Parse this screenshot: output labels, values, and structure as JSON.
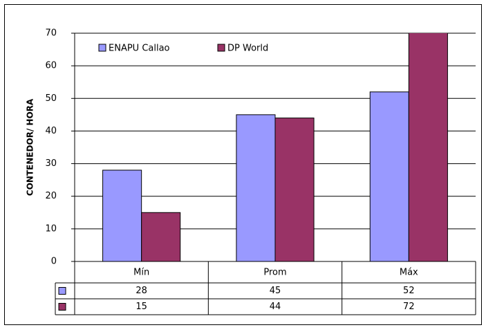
{
  "chart_data": {
    "type": "bar",
    "y_label": "CONTENEDOR/ HORA",
    "categories": [
      "Mín",
      "Prom",
      "Máx"
    ],
    "series": [
      {
        "name": "ENAPU Callao",
        "color": "#9999ff",
        "values": [
          28,
          45,
          52
        ]
      },
      {
        "name": "DP World",
        "color": "#993366",
        "values": [
          15,
          44,
          72
        ]
      }
    ],
    "ylim": [
      0,
      70
    ],
    "yticks": [
      0,
      10,
      20,
      30,
      40,
      50,
      60,
      70
    ],
    "grid": true,
    "legend": "upper left",
    "data_table": true
  }
}
